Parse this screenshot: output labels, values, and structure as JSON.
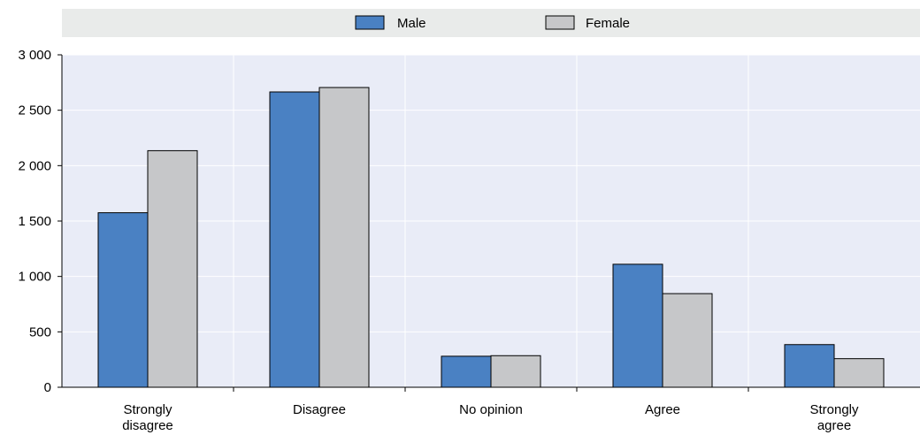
{
  "chart_data": {
    "type": "bar",
    "categories": [
      "Strongly disagree",
      "Disagree",
      "No opinion",
      "Agree",
      "Strongly agree"
    ],
    "category_lines": [
      [
        "Strongly",
        "disagree"
      ],
      [
        "Disagree"
      ],
      [
        "No opinion"
      ],
      [
        "Agree"
      ],
      [
        "Strongly",
        "agree"
      ]
    ],
    "series": [
      {
        "name": "Male",
        "values": [
          1575,
          2665,
          280,
          1110,
          385
        ]
      },
      {
        "name": "Female",
        "values": [
          2135,
          2705,
          285,
          845,
          258
        ]
      }
    ],
    "yticks": [
      0,
      500,
      1000,
      1500,
      2000,
      2500,
      3000
    ],
    "ytick_labels": [
      "0",
      "500",
      "1 000",
      "1 500",
      "2 000",
      "2 500",
      "3 000"
    ],
    "ylim": [
      0,
      3000
    ],
    "title": "",
    "xlabel": "",
    "ylabel": "",
    "grid": true,
    "legend_position": "top"
  },
  "colors": {
    "plot_bg": "#e9ecf7",
    "legend_bg": "#e9ebea",
    "grid": "#ffffff",
    "axis": "#000000",
    "series": [
      "#4a81c3",
      "#c6c7c9"
    ]
  }
}
